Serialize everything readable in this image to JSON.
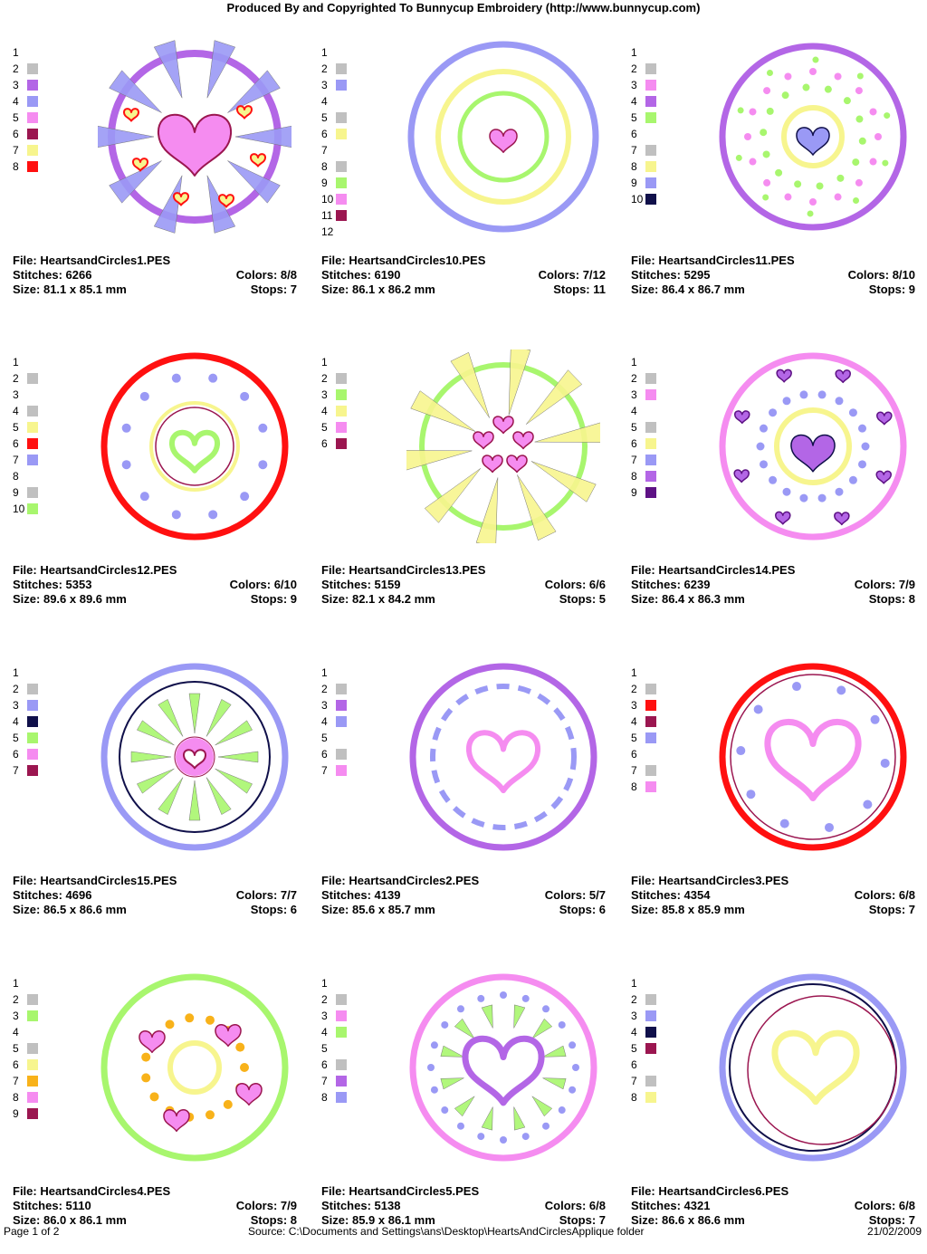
{
  "header": {
    "title": "Produced By and Copyrighted To Bunnycup Embroidery (http://www.bunnycup.com)"
  },
  "labels": {
    "file": "File: ",
    "stitches": "Stitches: ",
    "size": "Size: ",
    "colors": "Colors: ",
    "stops": "Stops: "
  },
  "colors": {
    "gray": "#c0c0c0",
    "purple": "#b366e6",
    "lavender": "#9a99f5",
    "pink": "#f58cf0",
    "maroon": "#9b1650",
    "yellow": "#f7f58e",
    "red": "#ff1010",
    "green": "#a8f66e",
    "navy": "#10104a",
    "orange": "#f8b21a",
    "violet": "#5e1285",
    "none": ""
  },
  "designs": [
    {
      "file": "HeartsandCircles1.PES",
      "stitches": "6266",
      "colors": "8/8",
      "size": "81.1 x 85.1 mm",
      "stops": "7",
      "swatches": [
        {
          "n": "1",
          "c": ""
        },
        {
          "n": "2",
          "c": "#c0c0c0"
        },
        {
          "n": "3",
          "c": "#b366e6"
        },
        {
          "n": "4",
          "c": "#9a99f5"
        },
        {
          "n": "5",
          "c": "#f58cf0"
        },
        {
          "n": "6",
          "c": "#9b1650"
        },
        {
          "n": "7",
          "c": "#f7f58e"
        },
        {
          "n": "8",
          "c": "#ff1010"
        }
      ],
      "art": "spikes-heart"
    },
    {
      "file": "HeartsandCircles10.PES",
      "stitches": "6190",
      "colors": "7/12",
      "size": "86.1 x 86.2 mm",
      "stops": "11",
      "swatches": [
        {
          "n": "1",
          "c": ""
        },
        {
          "n": "2",
          "c": "#c0c0c0"
        },
        {
          "n": "3",
          "c": "#9a99f5"
        },
        {
          "n": "4",
          "c": ""
        },
        {
          "n": "5",
          "c": "#c0c0c0"
        },
        {
          "n": "6",
          "c": "#f7f58e"
        },
        {
          "n": "7",
          "c": ""
        },
        {
          "n": "8",
          "c": "#c0c0c0"
        },
        {
          "n": "9",
          "c": "#a8f66e"
        },
        {
          "n": "10",
          "c": "#f58cf0"
        },
        {
          "n": "11",
          "c": "#9b1650"
        },
        {
          "n": "12",
          "c": ""
        }
      ],
      "art": "rings-heart"
    },
    {
      "file": "HeartsandCircles11.PES",
      "stitches": "5295",
      "colors": "8/10",
      "size": "86.4 x 86.7 mm",
      "stops": "9",
      "swatches": [
        {
          "n": "1",
          "c": ""
        },
        {
          "n": "2",
          "c": "#c0c0c0"
        },
        {
          "n": "3",
          "c": "#f58cf0"
        },
        {
          "n": "4",
          "c": "#b366e6"
        },
        {
          "n": "5",
          "c": "#a8f66e"
        },
        {
          "n": "6",
          "c": ""
        },
        {
          "n": "7",
          "c": "#c0c0c0"
        },
        {
          "n": "8",
          "c": "#f7f58e"
        },
        {
          "n": "9",
          "c": "#9a99f5"
        },
        {
          "n": "10",
          "c": "#10104a"
        }
      ],
      "art": "dots-heart"
    },
    {
      "file": "HeartsandCircles12.PES",
      "stitches": "5353",
      "colors": "6/10",
      "size": "89.6 x 89.6 mm",
      "stops": "9",
      "swatches": [
        {
          "n": "1",
          "c": ""
        },
        {
          "n": "2",
          "c": "#c0c0c0"
        },
        {
          "n": "3",
          "c": ""
        },
        {
          "n": "4",
          "c": "#c0c0c0"
        },
        {
          "n": "5",
          "c": "#f7f58e"
        },
        {
          "n": "6",
          "c": "#ff1010"
        },
        {
          "n": "7",
          "c": "#9a99f5"
        },
        {
          "n": "8",
          "c": ""
        },
        {
          "n": "9",
          "c": "#c0c0c0"
        },
        {
          "n": "10",
          "c": "#a8f66e"
        }
      ],
      "art": "red-ring"
    },
    {
      "file": "HeartsandCircles13.PES",
      "stitches": "5159",
      "colors": "6/6",
      "size": "82.1 x 84.2 mm",
      "stops": "5",
      "swatches": [
        {
          "n": "1",
          "c": ""
        },
        {
          "n": "2",
          "c": "#c0c0c0"
        },
        {
          "n": "3",
          "c": "#a8f66e"
        },
        {
          "n": "4",
          "c": "#f7f58e"
        },
        {
          "n": "5",
          "c": "#f58cf0"
        },
        {
          "n": "6",
          "c": "#9b1650"
        }
      ],
      "art": "yellow-spikes"
    },
    {
      "file": "HeartsandCircles14.PES",
      "stitches": "6239",
      "colors": "7/9",
      "size": "86.4 x 86.3 mm",
      "stops": "8",
      "swatches": [
        {
          "n": "1",
          "c": ""
        },
        {
          "n": "2",
          "c": "#c0c0c0"
        },
        {
          "n": "3",
          "c": "#f58cf0"
        },
        {
          "n": "4",
          "c": ""
        },
        {
          "n": "5",
          "c": "#c0c0c0"
        },
        {
          "n": "6",
          "c": "#f7f58e"
        },
        {
          "n": "7",
          "c": "#9a99f5"
        },
        {
          "n": "8",
          "c": "#b366e6"
        },
        {
          "n": "9",
          "c": "#5e1285"
        }
      ],
      "art": "pink-hearts"
    },
    {
      "file": "HeartsandCircles15.PES",
      "stitches": "4696",
      "colors": "7/7",
      "size": "86.5 x 86.6 mm",
      "stops": "6",
      "swatches": [
        {
          "n": "1",
          "c": ""
        },
        {
          "n": "2",
          "c": "#c0c0c0"
        },
        {
          "n": "3",
          "c": "#9a99f5"
        },
        {
          "n": "4",
          "c": "#10104a"
        },
        {
          "n": "5",
          "c": "#a8f66e"
        },
        {
          "n": "6",
          "c": "#f58cf0"
        },
        {
          "n": "7",
          "c": "#9b1650"
        }
      ],
      "art": "green-rays"
    },
    {
      "file": "HeartsandCircles2.PES",
      "stitches": "4139",
      "colors": "5/7",
      "size": "85.6 x 85.7 mm",
      "stops": "6",
      "swatches": [
        {
          "n": "1",
          "c": ""
        },
        {
          "n": "2",
          "c": "#c0c0c0"
        },
        {
          "n": "3",
          "c": "#b366e6"
        },
        {
          "n": "4",
          "c": "#9a99f5"
        },
        {
          "n": "5",
          "c": ""
        },
        {
          "n": "6",
          "c": "#c0c0c0"
        },
        {
          "n": "7",
          "c": "#f58cf0"
        }
      ],
      "art": "dashed"
    },
    {
      "file": "HeartsandCircles3.PES",
      "stitches": "4354",
      "colors": "6/8",
      "size": "85.8 x 85.9 mm",
      "stops": "7",
      "swatches": [
        {
          "n": "1",
          "c": ""
        },
        {
          "n": "2",
          "c": "#c0c0c0"
        },
        {
          "n": "3",
          "c": "#ff1010"
        },
        {
          "n": "4",
          "c": "#9b1650"
        },
        {
          "n": "5",
          "c": "#9a99f5"
        },
        {
          "n": "6",
          "c": ""
        },
        {
          "n": "7",
          "c": "#c0c0c0"
        },
        {
          "n": "8",
          "c": "#f58cf0"
        }
      ],
      "art": "red-big-heart"
    },
    {
      "file": "HeartsandCircles4.PES",
      "stitches": "5110",
      "colors": "7/9",
      "size": "86.0 x 86.1 mm",
      "stops": "8",
      "swatches": [
        {
          "n": "1",
          "c": ""
        },
        {
          "n": "2",
          "c": "#c0c0c0"
        },
        {
          "n": "3",
          "c": "#a8f66e"
        },
        {
          "n": "4",
          "c": ""
        },
        {
          "n": "5",
          "c": "#c0c0c0"
        },
        {
          "n": "6",
          "c": "#f7f58e"
        },
        {
          "n": "7",
          "c": "#f8b21a"
        },
        {
          "n": "8",
          "c": "#f58cf0"
        },
        {
          "n": "9",
          "c": "#9b1650"
        }
      ],
      "art": "orange-dots"
    },
    {
      "file": "HeartsandCircles5.PES",
      "stitches": "5138",
      "colors": "6/8",
      "size": "85.9 x 86.1 mm",
      "stops": "7",
      "swatches": [
        {
          "n": "1",
          "c": ""
        },
        {
          "n": "2",
          "c": "#c0c0c0"
        },
        {
          "n": "3",
          "c": "#f58cf0"
        },
        {
          "n": "4",
          "c": "#a8f66e"
        },
        {
          "n": "5",
          "c": ""
        },
        {
          "n": "6",
          "c": "#c0c0c0"
        },
        {
          "n": "7",
          "c": "#b366e6"
        },
        {
          "n": "8",
          "c": "#9a99f5"
        }
      ],
      "art": "purple-heart-rays"
    },
    {
      "file": "HeartsandCircles6.PES",
      "stitches": "4321",
      "colors": "6/8",
      "size": "86.6 x 86.6 mm",
      "stops": "7",
      "swatches": [
        {
          "n": "1",
          "c": ""
        },
        {
          "n": "2",
          "c": "#c0c0c0"
        },
        {
          "n": "3",
          "c": "#9a99f5"
        },
        {
          "n": "4",
          "c": "#10104a"
        },
        {
          "n": "5",
          "c": "#9b1650"
        },
        {
          "n": "6",
          "c": ""
        },
        {
          "n": "7",
          "c": "#c0c0c0"
        },
        {
          "n": "8",
          "c": "#f7f58e"
        }
      ],
      "art": "offset-rings"
    }
  ],
  "footer": {
    "page": "Page 1 of 2",
    "source": "Source: C:\\Documents and Settings\\ans\\Desktop\\HeartsAndCirclesApplique folder",
    "date": "21/02/2009"
  }
}
